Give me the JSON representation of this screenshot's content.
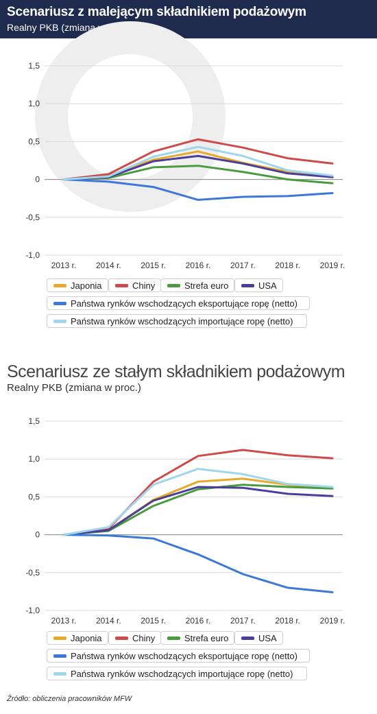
{
  "header": {
    "title": "Scenariusz z malejącym składnikiem podażowym",
    "subtitle": "Realny PKB (zmiana w proc.)"
  },
  "second": {
    "title": "Scenariusz ze stałym składnikiem podażowym",
    "subtitle": "Realny PKB (zmiana w proc.)"
  },
  "source": "Źródło: obliczenia pracowników MFW",
  "legend": [
    {
      "label": "Japonia",
      "color": "#e8a92a"
    },
    {
      "label": "Chiny",
      "color": "#cf4a4a"
    },
    {
      "label": "Strefa euro",
      "color": "#4a9a3e"
    },
    {
      "label": "USA",
      "color": "#4a3e9a"
    },
    {
      "label": "Państwa rynków wschodzących eksportujące ropę (netto)",
      "color": "#3d78d8"
    },
    {
      "label": "Państwa rynków wschodzących importujące ropę (netto)",
      "color": "#9fd6ec"
    }
  ],
  "chart_data": [
    {
      "type": "line",
      "title": "Scenariusz z malejącym składnikiem podażowym",
      "subtitle": "Realny PKB (zmiana w proc.)",
      "x": [
        "2013 r.",
        "2014 r.",
        "2015 r.",
        "2016 r.",
        "2017 r.",
        "2018 r.",
        "2019 r."
      ],
      "ylim": [
        -1.0,
        1.5
      ],
      "yticks": [
        "1,5",
        "1,0",
        "0,5",
        "0",
        "-0,5",
        "-1,0"
      ],
      "grid": true,
      "legend_position": "bottom",
      "series": [
        {
          "name": "Japonia",
          "color": "#e8a92a",
          "values": [
            0.0,
            0.05,
            0.26,
            0.37,
            0.22,
            0.1,
            0.03
          ]
        },
        {
          "name": "Chiny",
          "color": "#cf4a4a",
          "values": [
            0.0,
            0.07,
            0.37,
            0.53,
            0.42,
            0.28,
            0.21
          ]
        },
        {
          "name": "Strefa euro",
          "color": "#4a9a3e",
          "values": [
            0.0,
            0.02,
            0.16,
            0.18,
            0.1,
            0.0,
            -0.05
          ]
        },
        {
          "name": "USA",
          "color": "#4a3e9a",
          "values": [
            0.0,
            0.03,
            0.24,
            0.31,
            0.21,
            0.08,
            0.03
          ]
        },
        {
          "name": "Państwa rynków wschodzących eksportujące ropę (netto)",
          "color": "#3d78d8",
          "values": [
            0.0,
            -0.03,
            -0.1,
            -0.27,
            -0.23,
            -0.22,
            -0.18
          ]
        },
        {
          "name": "Państwa rynków wschodzących importujące ropę (netto)",
          "color": "#9fd6ec",
          "values": [
            0.0,
            0.04,
            0.3,
            0.43,
            0.31,
            0.12,
            0.05
          ]
        }
      ]
    },
    {
      "type": "line",
      "title": "Scenariusz ze stałym składnikiem podażowym",
      "subtitle": "Realny PKB (zmiana w proc.)",
      "x": [
        "2013 r.",
        "2014 r.",
        "2015 r.",
        "2016 r.",
        "2017 r.",
        "2018 r.",
        "2019 r."
      ],
      "ylim": [
        -1.0,
        1.5
      ],
      "yticks": [
        "1,5",
        "1,0",
        "0,5",
        "0",
        "-0,5",
        "-1,0"
      ],
      "grid": true,
      "legend_position": "bottom",
      "series": [
        {
          "name": "Japonia",
          "color": "#e8a92a",
          "values": [
            0.0,
            0.06,
            0.46,
            0.7,
            0.74,
            0.66,
            0.62
          ]
        },
        {
          "name": "Chiny",
          "color": "#cf4a4a",
          "values": [
            0.0,
            0.08,
            0.7,
            1.04,
            1.12,
            1.05,
            1.01
          ]
        },
        {
          "name": "Strefa euro",
          "color": "#4a9a3e",
          "values": [
            0.0,
            0.05,
            0.38,
            0.6,
            0.66,
            0.63,
            0.61
          ]
        },
        {
          "name": "USA",
          "color": "#4a3e9a",
          "values": [
            0.0,
            0.06,
            0.45,
            0.63,
            0.62,
            0.54,
            0.51
          ]
        },
        {
          "name": "Państwa rynków wschodzących eksportujące ropę (netto)",
          "color": "#3d78d8",
          "values": [
            0.0,
            -0.01,
            -0.05,
            -0.26,
            -0.52,
            -0.7,
            -0.76
          ]
        },
        {
          "name": "Państwa rynków wschodzących importujące ropę (netto)",
          "color": "#9fd6ec",
          "values": [
            0.0,
            0.1,
            0.66,
            0.87,
            0.8,
            0.67,
            0.63
          ]
        }
      ]
    }
  ]
}
